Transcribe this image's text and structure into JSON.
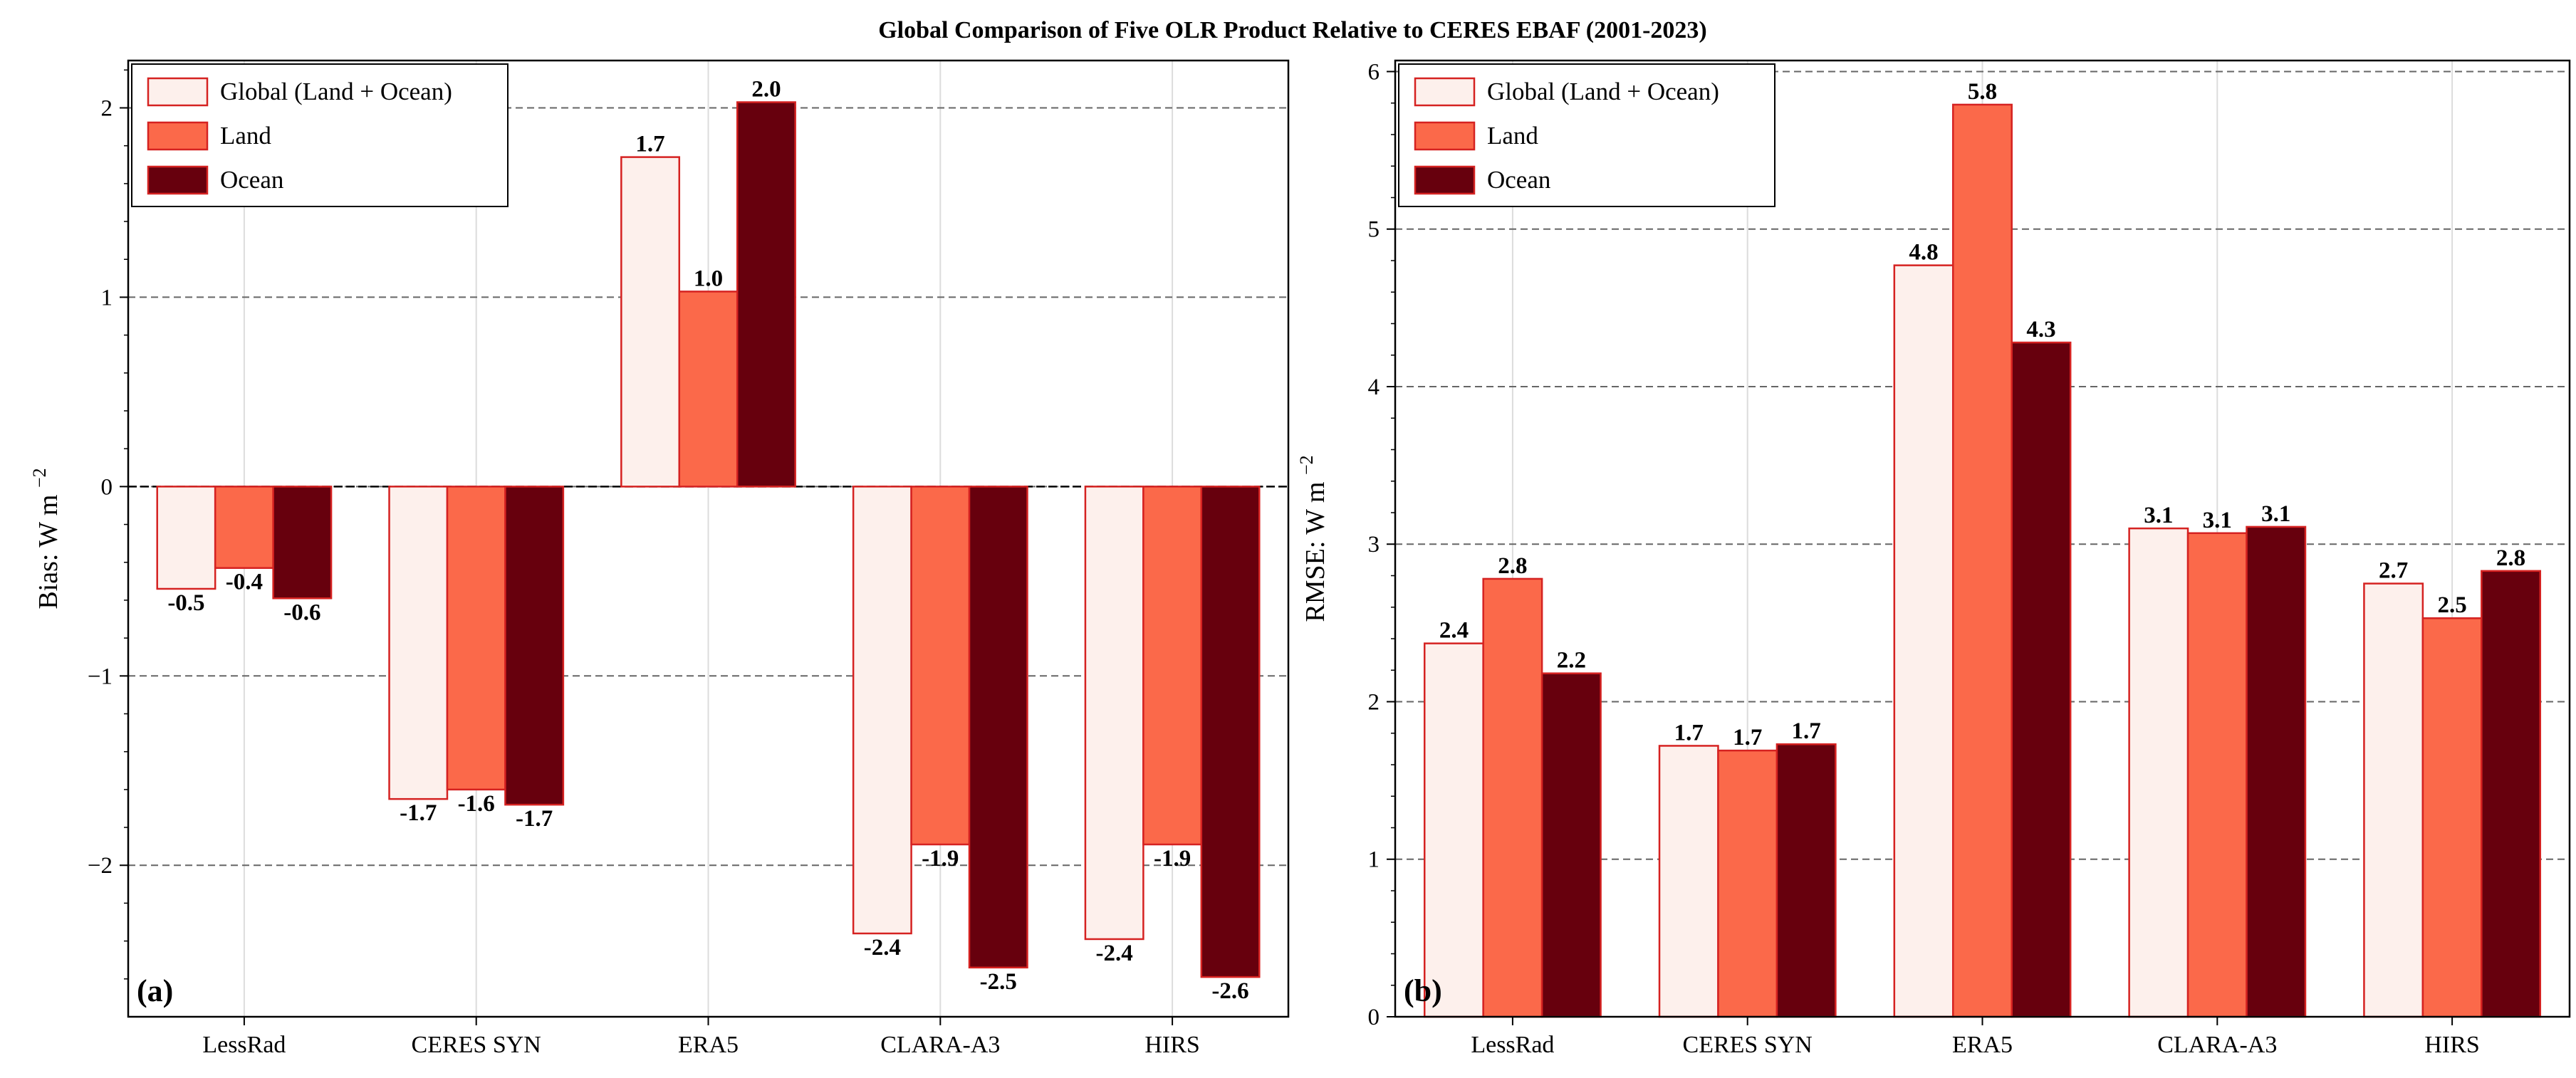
{
  "title": "Global Comparison of Five OLR Product Relative to CERES EBAF (2001-2023)",
  "colors": {
    "global_fill": "#fdf0ec",
    "land_fill": "#fb694a",
    "ocean_fill": "#67000d",
    "bar_edge": "#d52221",
    "grid": "#666666",
    "minor_grid": "#dcdcdc"
  },
  "chart_data": [
    {
      "type": "bar",
      "panel_label": "(a)",
      "categories": [
        "LessRad",
        "CERES SYN",
        "ERA5",
        "CLARA-A3",
        "HIRS"
      ],
      "series": [
        {
          "name": "Global (Land + Ocean)",
          "values": [
            -0.54,
            -1.65,
            1.74,
            -2.36,
            -2.39
          ],
          "labels": [
            "-0.5",
            "-1.7",
            "1.7",
            "-2.4",
            "-2.4"
          ]
        },
        {
          "name": "Land",
          "values": [
            -0.43,
            -1.6,
            1.03,
            -1.89,
            -1.89
          ],
          "labels": [
            "-0.4",
            "-1.6",
            "1.0",
            "-1.9",
            "-1.9"
          ]
        },
        {
          "name": "Ocean",
          "values": [
            -0.59,
            -1.68,
            2.03,
            -2.54,
            -2.59
          ],
          "labels": [
            "-0.6",
            "-1.7",
            "2.0",
            "-2.5",
            "-2.6"
          ]
        }
      ],
      "ylabel": "Bias: W m",
      "ylabel_sup": "−2",
      "ylim": [
        -2.8,
        2.25
      ],
      "yticks": [
        -2,
        -1,
        0,
        1,
        2
      ],
      "ytick_labels": [
        "−2",
        "−1",
        "0",
        "1",
        "2"
      ],
      "grid": "horizontal dashed",
      "zero_line": true,
      "legend_position": "top-left"
    },
    {
      "type": "bar",
      "panel_label": "(b)",
      "categories": [
        "LessRad",
        "CERES SYN",
        "ERA5",
        "CLARA-A3",
        "HIRS"
      ],
      "series": [
        {
          "name": "Global (Land + Ocean)",
          "values": [
            2.37,
            1.72,
            4.77,
            3.1,
            2.75
          ],
          "labels": [
            "2.4",
            "1.7",
            "4.8",
            "3.1",
            "2.7"
          ]
        },
        {
          "name": "Land",
          "values": [
            2.78,
            1.69,
            5.79,
            3.07,
            2.53
          ],
          "labels": [
            "2.8",
            "1.7",
            "5.8",
            "3.1",
            "2.5"
          ]
        },
        {
          "name": "Ocean",
          "values": [
            2.18,
            1.73,
            4.28,
            3.11,
            2.83
          ],
          "labels": [
            "2.2",
            "1.7",
            "4.3",
            "3.1",
            "2.8"
          ]
        }
      ],
      "ylabel": "RMSE: W m",
      "ylabel_sup": "−2",
      "ylim": [
        0,
        6.07
      ],
      "yticks": [
        0,
        1,
        2,
        3,
        4,
        5,
        6
      ],
      "ytick_labels": [
        "0",
        "1",
        "2",
        "3",
        "4",
        "5",
        "6"
      ],
      "grid": "horizontal dashed",
      "zero_line": false,
      "legend_position": "top-left"
    }
  ]
}
